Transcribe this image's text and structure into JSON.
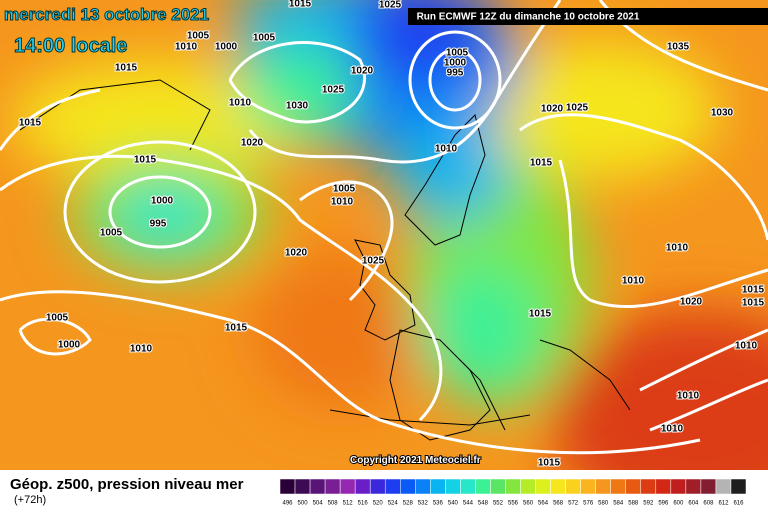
{
  "header": {
    "date": "mercredi 13 octobre 2021",
    "time": "14:00 locale",
    "run": "Run ECMWF 12Z du dimanche 10 octobre 2021"
  },
  "copyright": "Copyright 2021 Meteociel.fr",
  "footer": {
    "title": "Géop. z500, pression niveau mer",
    "lead": "(+72h)"
  },
  "isobar_labels": [
    "1015",
    "1025",
    "1005",
    "1010",
    "1000",
    "1005",
    "1015",
    "1010",
    "1030",
    "1025",
    "1020",
    "1005",
    "1000",
    "995",
    "1020",
    "1025",
    "1035",
    "1030",
    "1015",
    "1020",
    "1015",
    "1010",
    "1015",
    "1005",
    "1010",
    "1000",
    "995",
    "1005",
    "1020",
    "1025",
    "1010",
    "1010",
    "1020",
    "1015",
    "1015",
    "1005",
    "1000",
    "1015",
    "1010",
    "1015",
    "1010",
    "1010",
    "1010",
    "1015"
  ],
  "scale": {
    "labels": [
      "496",
      "500",
      "504",
      "508",
      "512",
      "516",
      "520",
      "524",
      "528",
      "532",
      "536",
      "540",
      "544",
      "548",
      "552",
      "556",
      "560",
      "564",
      "568",
      "572",
      "576",
      "580",
      "584",
      "588",
      "592",
      "596",
      "600",
      "604",
      "608",
      "612",
      "616"
    ],
    "colors": [
      "#2a0038",
      "#3d0a55",
      "#5a1478",
      "#7a1e96",
      "#9428b0",
      "#6a1ec8",
      "#3c28dc",
      "#1e3cf0",
      "#0a5af5",
      "#0a82f5",
      "#0ab4f0",
      "#14d2e6",
      "#28e6c8",
      "#3cf096",
      "#5ae664",
      "#82e63c",
      "#b4ec28",
      "#dcf01e",
      "#f5e61e",
      "#fad21e",
      "#fab41e",
      "#f5961e",
      "#f07814",
      "#e65a14",
      "#dc3c14",
      "#d22814",
      "#be1e1e",
      "#a01e28",
      "#821e32",
      "#b4b4b4",
      "#1e1e1e"
    ]
  }
}
